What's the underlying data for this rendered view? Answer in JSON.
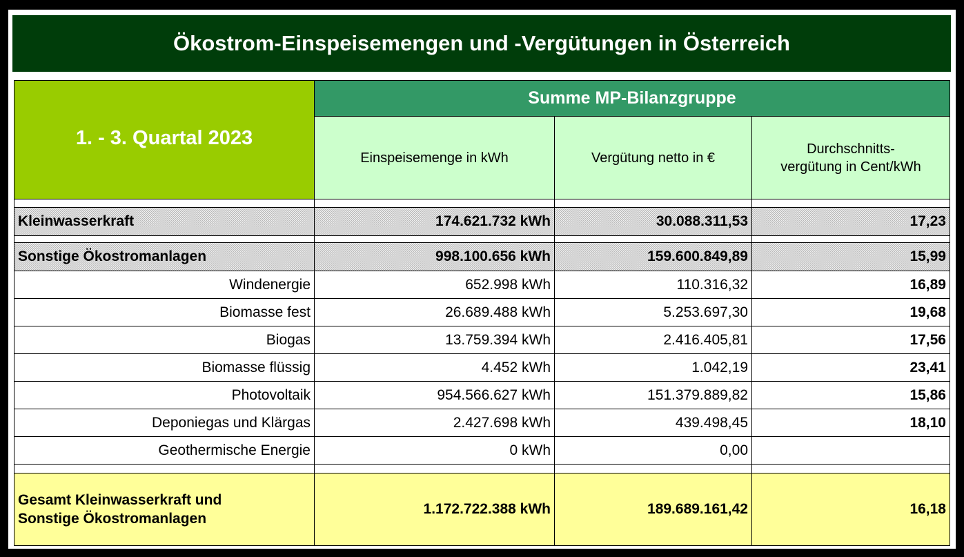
{
  "header": {
    "title": "Ökostrom-Einspeisemengen und -Vergütungen in Österreich"
  },
  "table": {
    "period": "1. - 3. Quartal 2023",
    "group": "Summe MP-Bilanzgruppe",
    "columns": [
      "Einspeisemenge in kWh",
      "Vergütung netto in €",
      "Durchschnitts-\nvergütung in Cent/kWh"
    ],
    "sections": [
      {
        "label": "Kleinwasserkraft",
        "kwh": "174.621.732 kWh",
        "eur": "30.088.311,53",
        "avg": "17,23",
        "items": []
      },
      {
        "label": "Sonstige Ökostromanlagen",
        "kwh": "998.100.656 kWh",
        "eur": "159.600.849,89",
        "avg": "15,99",
        "items": [
          {
            "label": "Windenergie",
            "kwh": "652.998 kWh",
            "eur": "110.316,32",
            "avg": "16,89"
          },
          {
            "label": "Biomasse fest",
            "kwh": "26.689.488 kWh",
            "eur": "5.253.697,30",
            "avg": "19,68"
          },
          {
            "label": "Biogas",
            "kwh": "13.759.394 kWh",
            "eur": "2.416.405,81",
            "avg": "17,56"
          },
          {
            "label": "Biomasse flüssig",
            "kwh": "4.452 kWh",
            "eur": "1.042,19",
            "avg": "23,41"
          },
          {
            "label": "Photovoltaik",
            "kwh": "954.566.627 kWh",
            "eur": "151.379.889,82",
            "avg": "15,86"
          },
          {
            "label": "Deponiegas und Klärgas",
            "kwh": "2.427.698 kWh",
            "eur": "439.498,45",
            "avg": "18,10"
          },
          {
            "label": "Geothermische Energie",
            "kwh": "0 kWh",
            "eur": "0,00"
          }
        ]
      }
    ],
    "total": {
      "label": "Gesamt Kleinwasserkraft und\nSonstige Ökostromanlagen",
      "kwh": "1.172.722.388 kWh",
      "eur": "189.689.161,42",
      "avg": "16,18"
    }
  }
}
